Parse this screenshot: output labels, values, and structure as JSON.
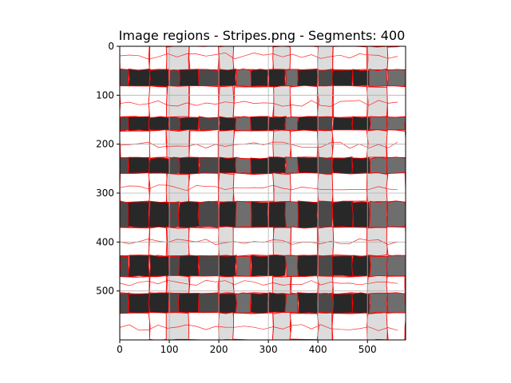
{
  "chart_data": {
    "type": "heatmap",
    "title": "Image regions - Stripes.png - Segments: 400",
    "xlabel": "",
    "ylabel": "",
    "x_ticks": [
      0,
      100,
      200,
      300,
      400,
      500
    ],
    "y_ticks": [
      0,
      100,
      200,
      300,
      400,
      500
    ],
    "xlim": [
      0,
      577
    ],
    "ylim": [
      600,
      0
    ],
    "grid": true,
    "colors": {
      "boundary": "#ff0000",
      "white": "#ffffff",
      "light_gray": "#dcdcdc",
      "mid_gray": "#b9b9b9",
      "dark_gray": "#6e6e6e",
      "charcoal": "#4a4a4a",
      "black": "#282828",
      "grid": "#b0b0b0"
    },
    "bands": [
      {
        "y0": 0,
        "y1": 48,
        "pattern": "light"
      },
      {
        "y0": 48,
        "y1": 82,
        "pattern": "dark"
      },
      {
        "y0": 82,
        "y1": 145,
        "pattern": "light"
      },
      {
        "y0": 145,
        "y1": 172,
        "pattern": "dark"
      },
      {
        "y0": 172,
        "y1": 228,
        "pattern": "light"
      },
      {
        "y0": 228,
        "y1": 260,
        "pattern": "dark"
      },
      {
        "y0": 260,
        "y1": 318,
        "pattern": "light"
      },
      {
        "y0": 318,
        "y1": 370,
        "pattern": "dark"
      },
      {
        "y0": 370,
        "y1": 428,
        "pattern": "light"
      },
      {
        "y0": 428,
        "y1": 470,
        "pattern": "dark"
      },
      {
        "y0": 470,
        "y1": 505,
        "pattern": "light"
      },
      {
        "y0": 505,
        "y1": 545,
        "pattern": "dark"
      },
      {
        "y0": 545,
        "y1": 600,
        "pattern": "light"
      }
    ],
    "light_columns": [
      {
        "x0": 0,
        "x1": 60,
        "shade": "white"
      },
      {
        "x0": 60,
        "x1": 95,
        "shade": "white"
      },
      {
        "x0": 95,
        "x1": 140,
        "shade": "light_gray"
      },
      {
        "x0": 140,
        "x1": 200,
        "shade": "white"
      },
      {
        "x0": 200,
        "x1": 230,
        "shade": "light_gray"
      },
      {
        "x0": 230,
        "x1": 310,
        "shade": "white"
      },
      {
        "x0": 310,
        "x1": 345,
        "shade": "light_gray"
      },
      {
        "x0": 345,
        "x1": 400,
        "shade": "white"
      },
      {
        "x0": 400,
        "x1": 430,
        "shade": "light_gray"
      },
      {
        "x0": 430,
        "x1": 500,
        "shade": "white"
      },
      {
        "x0": 500,
        "x1": 540,
        "shade": "light_gray"
      },
      {
        "x0": 540,
        "x1": 577,
        "shade": "white"
      }
    ],
    "dark_columns": [
      {
        "x0": 0,
        "x1": 18,
        "shade": "charcoal"
      },
      {
        "x0": 18,
        "x1": 60,
        "shade": "black"
      },
      {
        "x0": 60,
        "x1": 100,
        "shade": "black"
      },
      {
        "x0": 100,
        "x1": 120,
        "shade": "charcoal"
      },
      {
        "x0": 120,
        "x1": 160,
        "shade": "black"
      },
      {
        "x0": 160,
        "x1": 200,
        "shade": "charcoal"
      },
      {
        "x0": 200,
        "x1": 235,
        "shade": "black"
      },
      {
        "x0": 235,
        "x1": 265,
        "shade": "dark_gray"
      },
      {
        "x0": 265,
        "x1": 300,
        "shade": "black"
      },
      {
        "x0": 300,
        "x1": 335,
        "shade": "black"
      },
      {
        "x0": 335,
        "x1": 360,
        "shade": "dark_gray"
      },
      {
        "x0": 360,
        "x1": 400,
        "shade": "black"
      },
      {
        "x0": 400,
        "x1": 430,
        "shade": "charcoal"
      },
      {
        "x0": 430,
        "x1": 470,
        "shade": "black"
      },
      {
        "x0": 470,
        "x1": 505,
        "shade": "black"
      },
      {
        "x0": 505,
        "x1": 540,
        "shade": "dark_gray"
      },
      {
        "x0": 540,
        "x1": 577,
        "shade": "dark_gray"
      }
    ]
  }
}
